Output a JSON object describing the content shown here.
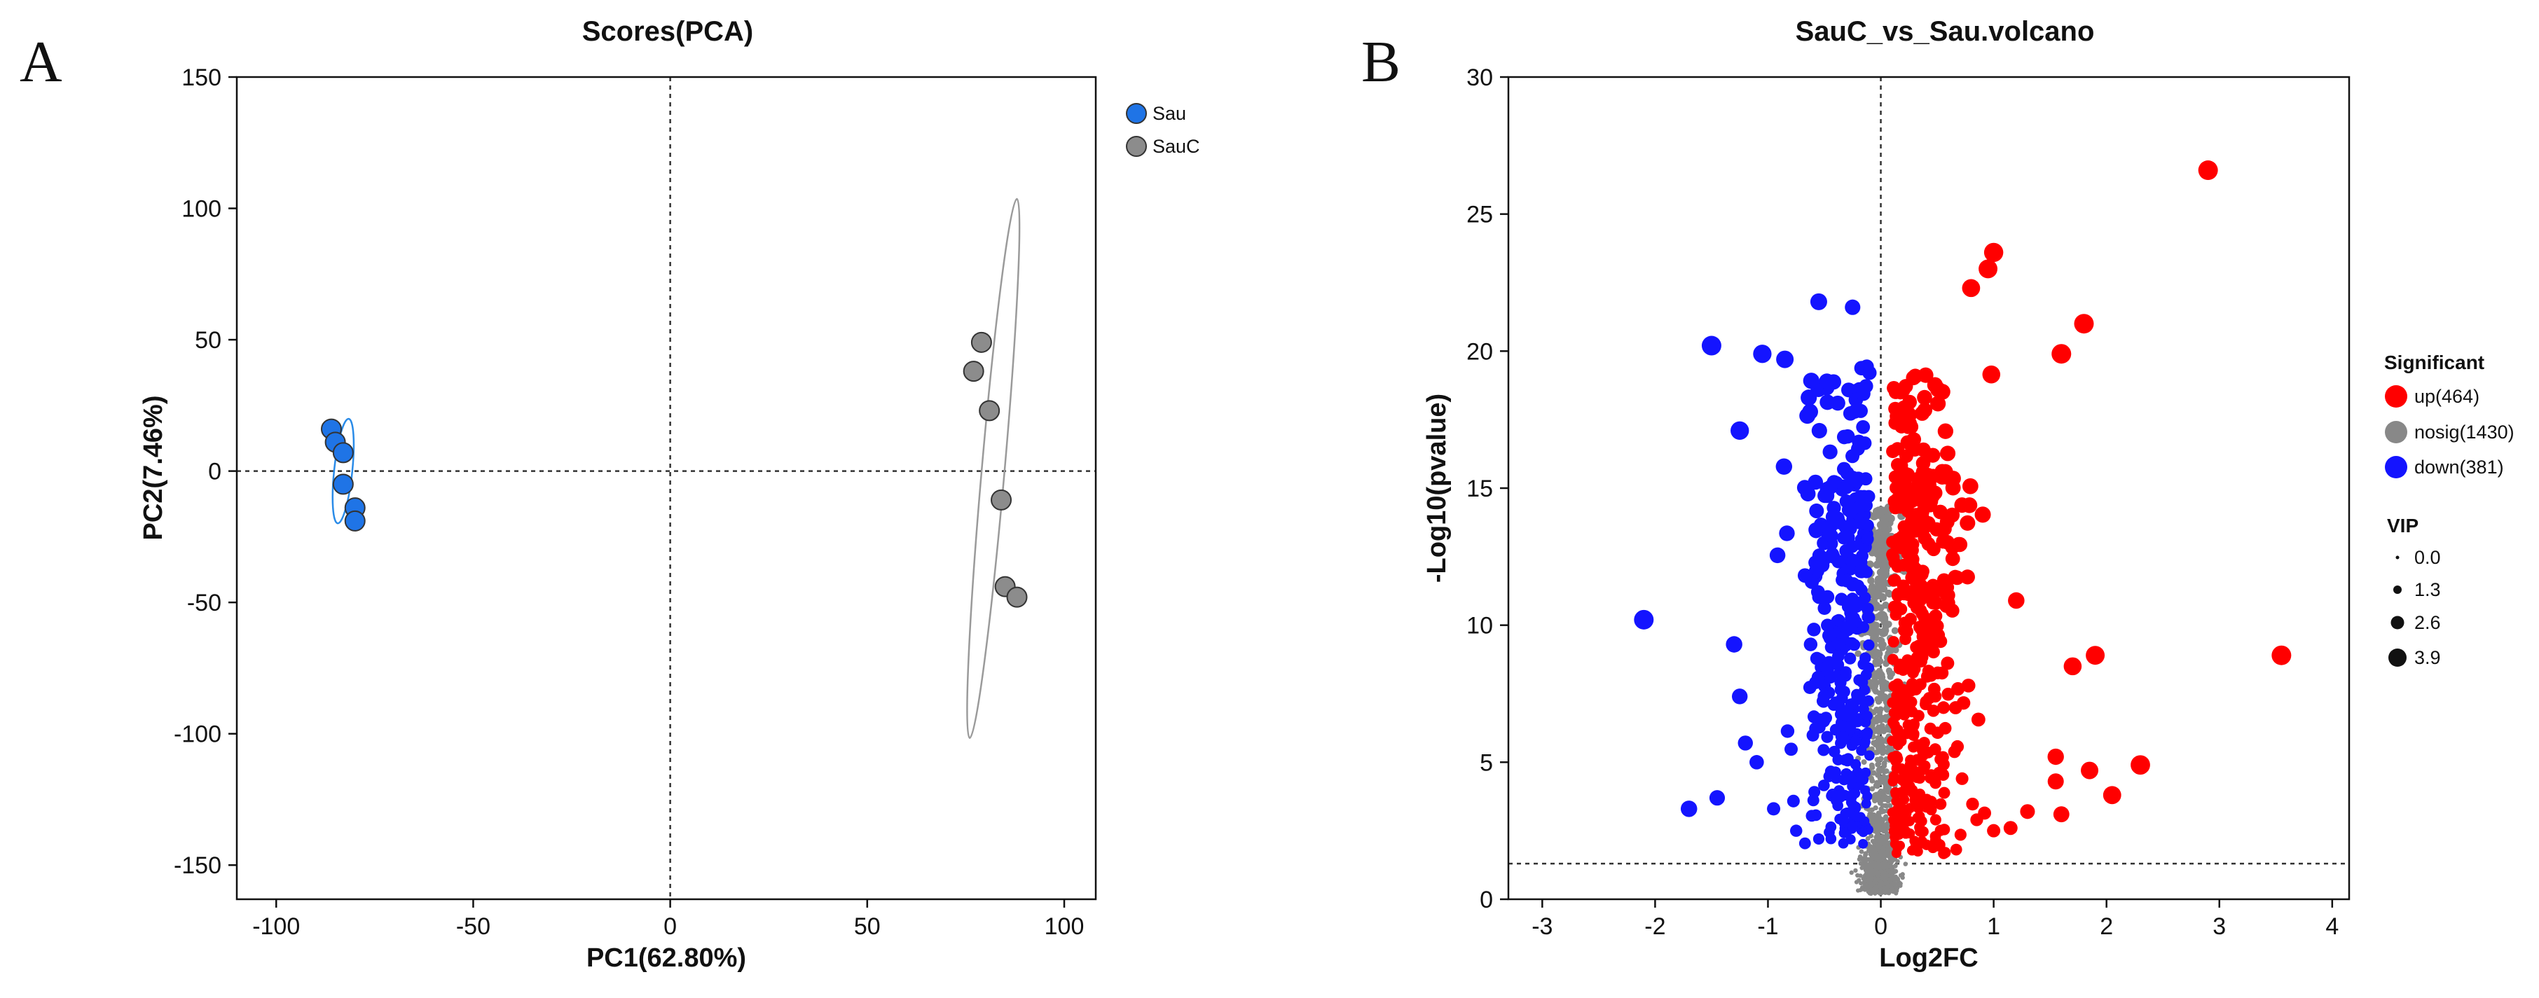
{
  "panels": {
    "a_letter": "A",
    "b_letter": "B"
  },
  "colors": {
    "sau": "#1f74e6",
    "sauc": "#8c8c8c",
    "up": "#ff0000",
    "nosig": "#888888",
    "down": "#1414ff",
    "sau_ellipse": "#2a8be8",
    "sauc_ellipse": "#9a9a9a"
  },
  "chart_data": [
    {
      "type": "scatter",
      "title": "Scores(PCA)",
      "xlabel": "PC1(62.80%)",
      "ylabel": "PC2(7.46%)",
      "xlim": [
        -110,
        108
      ],
      "ylim": [
        -163,
        150
      ],
      "xticks": [
        -100,
        -50,
        0,
        50,
        100
      ],
      "yticks": [
        -150,
        -100,
        -50,
        0,
        50,
        100,
        150
      ],
      "reference_lines": {
        "x": 0,
        "y": 0
      },
      "legend": [
        "Sau",
        "SauC"
      ],
      "series": [
        {
          "name": "Sau",
          "points": [
            [
              -86,
              16
            ],
            [
              -85,
              11
            ],
            [
              -83,
              7
            ],
            [
              -83,
              -5
            ],
            [
              -80,
              -14
            ],
            [
              -80,
              -19
            ]
          ],
          "ellipse": {
            "center": [
              -83,
              0
            ],
            "rx": 20,
            "ry": 2.3,
            "angle": -84
          }
        },
        {
          "name": "SauC",
          "points": [
            [
              79,
              49
            ],
            [
              77,
              38
            ],
            [
              81,
              23
            ],
            [
              84,
              -11
            ],
            [
              85,
              -44
            ],
            [
              88,
              -48
            ]
          ],
          "ellipse": {
            "center": [
              82,
              1
            ],
            "rx": 103,
            "ry": 2.9,
            "angle": -85
          }
        }
      ]
    },
    {
      "type": "scatter",
      "title": "SauC_vs_Sau.volcano",
      "xlabel": "Log2FC",
      "ylabel": "-Log10(pvalue)",
      "xlim": [
        -3.3,
        4.15
      ],
      "ylim": [
        0,
        30
      ],
      "xticks": [
        -3,
        -2,
        -1,
        0,
        1,
        2,
        3,
        4
      ],
      "yticks": [
        0,
        5,
        10,
        15,
        20,
        25,
        30
      ],
      "reference_lines": {
        "x": 0,
        "y": 1.3
      },
      "legend_significant": {
        "title": "Significant",
        "items": [
          {
            "key": "up",
            "label": "up(464)"
          },
          {
            "key": "nosig",
            "label": "nosig(1430)"
          },
          {
            "key": "down",
            "label": "down(381)"
          }
        ]
      },
      "legend_vip": {
        "title": "VIP",
        "items": [
          "0.0",
          "1.3",
          "2.6",
          "3.9"
        ]
      },
      "counts": {
        "up": 464,
        "nosig": 1430,
        "down": 381
      },
      "highlighted_points": {
        "up": [
          [
            2.9,
            26.6
          ],
          [
            3.55,
            8.9
          ],
          [
            1.8,
            21.0
          ],
          [
            1.6,
            19.9
          ],
          [
            1.0,
            23.6
          ],
          [
            0.95,
            23.0
          ],
          [
            0.8,
            22.3
          ],
          [
            1.9,
            8.9
          ],
          [
            1.7,
            8.5
          ],
          [
            1.2,
            10.9
          ],
          [
            2.3,
            4.9
          ],
          [
            2.05,
            3.8
          ],
          [
            1.85,
            4.7
          ],
          [
            1.55,
            5.2
          ],
          [
            1.55,
            4.3
          ],
          [
            1.6,
            3.1
          ],
          [
            1.3,
            3.2
          ],
          [
            1.15,
            2.6
          ],
          [
            1.0,
            2.5
          ],
          [
            0.85,
            2.9
          ]
        ],
        "down": [
          [
            -2.1,
            10.2
          ],
          [
            -1.5,
            20.2
          ],
          [
            -1.05,
            19.9
          ],
          [
            -0.85,
            19.7
          ],
          [
            -0.55,
            21.8
          ],
          [
            -0.25,
            21.6
          ],
          [
            -1.25,
            17.1
          ],
          [
            -1.7,
            3.3
          ],
          [
            -1.45,
            3.7
          ],
          [
            -1.3,
            9.3
          ],
          [
            -1.25,
            7.4
          ],
          [
            -1.2,
            5.7
          ],
          [
            -1.1,
            5.0
          ],
          [
            -0.95,
            3.3
          ],
          [
            -0.75,
            2.5
          ],
          [
            -0.55,
            2.2
          ]
        ]
      }
    }
  ]
}
